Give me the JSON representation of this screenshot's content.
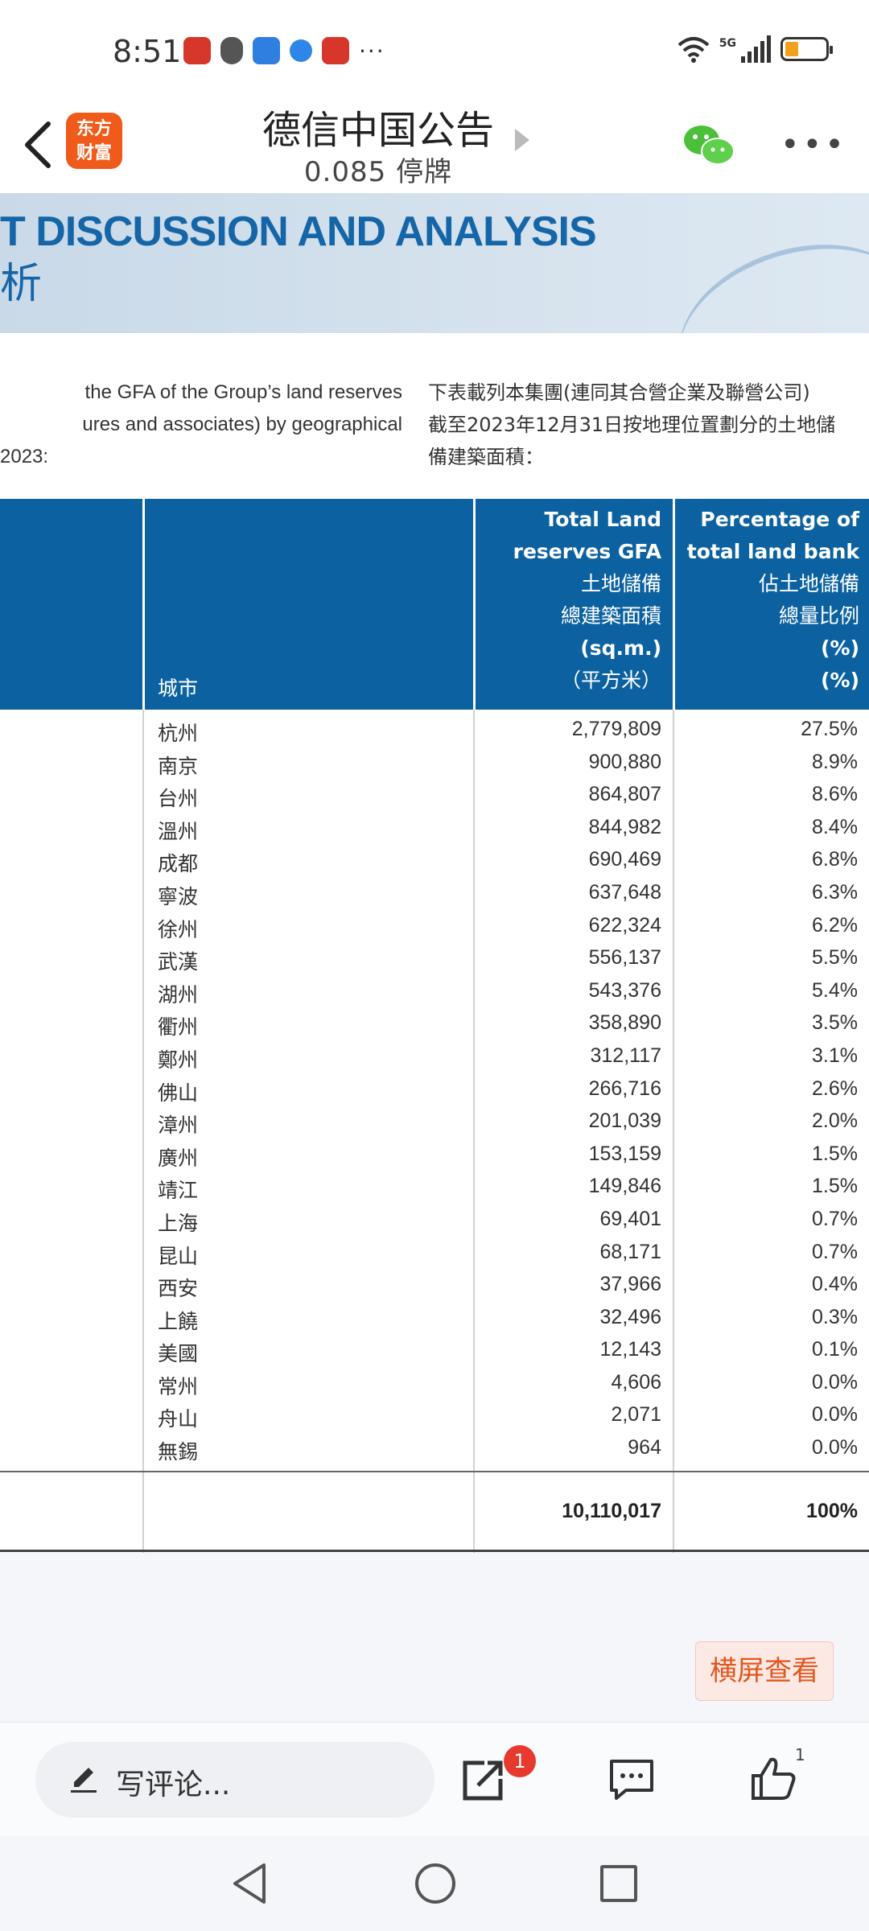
{
  "status_bar": {
    "time": "8:51",
    "network": "5G"
  },
  "header": {
    "logo_line1": "东方",
    "logo_line2": "财富",
    "title": "德信中国公告",
    "subtitle": "0.085  停牌"
  },
  "banner": {
    "english": "T DISCUSSION AND ANALYSIS",
    "chinese": "析"
  },
  "intro": {
    "left_lines": [
      "the GFA of the Group’s land reserves",
      "ures and associates) by geographical",
      "2023:"
    ],
    "right_lines": [
      "下表載列本集團(連同其合營企業及聯營公司)",
      "截至2023年12月31日按地理位置劃分的土地儲",
      "備建築面積："
    ]
  },
  "table": {
    "city_header": "城市",
    "gfa_header": [
      "Total Land",
      "reserves GFA",
      "土地儲備",
      "總建築面積",
      "(sq.m.)",
      "（平方米）"
    ],
    "pct_header": [
      "Percentage of",
      "total land bank",
      "佔土地儲備",
      "總量比例",
      "(%)",
      "(%)"
    ],
    "rows": [
      {
        "city": "杭州",
        "gfa": "2,779,809",
        "pct": "27.5%"
      },
      {
        "city": "南京",
        "gfa": "900,880",
        "pct": "8.9%"
      },
      {
        "city": "台州",
        "gfa": "864,807",
        "pct": "8.6%"
      },
      {
        "city": "溫州",
        "gfa": "844,982",
        "pct": "8.4%"
      },
      {
        "city": "成都",
        "gfa": "690,469",
        "pct": "6.8%"
      },
      {
        "city": "寧波",
        "gfa": "637,648",
        "pct": "6.3%"
      },
      {
        "city": "徐州",
        "gfa": "622,324",
        "pct": "6.2%"
      },
      {
        "city": "武漢",
        "gfa": "556,137",
        "pct": "5.5%"
      },
      {
        "city": "湖州",
        "gfa": "543,376",
        "pct": "5.4%"
      },
      {
        "city": "衢州",
        "gfa": "358,890",
        "pct": "3.5%"
      },
      {
        "city": "鄭州",
        "gfa": "312,117",
        "pct": "3.1%"
      },
      {
        "city": "佛山",
        "gfa": "266,716",
        "pct": "2.6%"
      },
      {
        "city": "漳州",
        "gfa": "201,039",
        "pct": "2.0%"
      },
      {
        "city": "廣州",
        "gfa": "153,159",
        "pct": "1.5%"
      },
      {
        "city": "靖江",
        "gfa": "149,846",
        "pct": "1.5%"
      },
      {
        "city": "上海",
        "gfa": "69,401",
        "pct": "0.7%"
      },
      {
        "city": "昆山",
        "gfa": "68,171",
        "pct": "0.7%"
      },
      {
        "city": "西安",
        "gfa": "37,966",
        "pct": "0.4%"
      },
      {
        "city": "上饒",
        "gfa": "32,496",
        "pct": "0.3%"
      },
      {
        "city": "美國",
        "gfa": "12,143",
        "pct": "0.1%"
      },
      {
        "city": "常州",
        "gfa": "4,606",
        "pct": "0.0%"
      },
      {
        "city": "舟山",
        "gfa": "2,071",
        "pct": "0.0%"
      },
      {
        "city": "無錫",
        "gfa": "964",
        "pct": "0.0%"
      }
    ],
    "total_gfa": "10,110,017",
    "total_pct": "100%"
  },
  "landscape_button": "横屏查看",
  "action_bar": {
    "comment_placeholder": "写评论...",
    "share_badge": "1",
    "like_count": "1"
  },
  "colors": {
    "table_header_bg": "#0c62a0",
    "banner_text": "#1566a8",
    "accent_orange": "#e2561f",
    "badge_red": "#e63a2e"
  }
}
